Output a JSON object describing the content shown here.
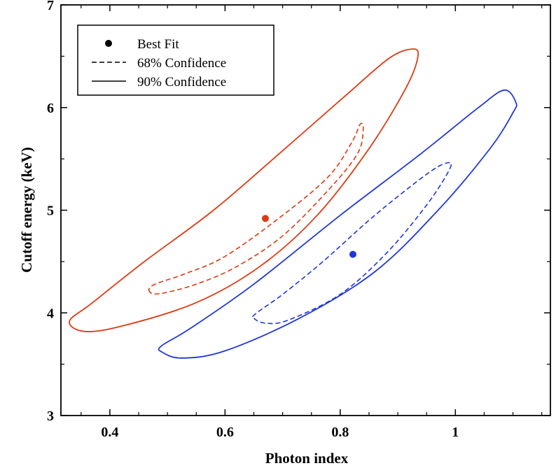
{
  "chart_data": {
    "type": "scatter",
    "title": "",
    "xlabel": "Photon index",
    "ylabel": "Cutoff energy (keV)",
    "xlim": [
      0.315,
      1.165
    ],
    "ylim": [
      3,
      7
    ],
    "xticks": [
      0.4,
      0.6,
      0.8,
      1.0
    ],
    "xtick_labels": [
      "0.4",
      "0.6",
      "0.8",
      "1"
    ],
    "yticks": [
      3,
      4,
      5,
      6,
      7
    ],
    "ytick_labels": [
      "3",
      "4",
      "5",
      "6",
      "7"
    ],
    "legend": {
      "position": "top-left",
      "entries": [
        {
          "label": "Best Fit",
          "style": "dot"
        },
        {
          "label": "68% Confidence",
          "style": "dashed"
        },
        {
          "label": "90% Confidence",
          "style": "solid"
        }
      ]
    },
    "series": [
      {
        "name": "red",
        "color": "#dd3a12",
        "best_fit": {
          "x": 0.67,
          "y": 4.92
        },
        "contour_68": [
          [
            0.47,
            4.2
          ],
          [
            0.475,
            4.27
          ],
          [
            0.53,
            4.38
          ],
          [
            0.6,
            4.55
          ],
          [
            0.7,
            4.95
          ],
          [
            0.78,
            5.33
          ],
          [
            0.82,
            5.66
          ],
          [
            0.835,
            5.84
          ],
          [
            0.84,
            5.78
          ],
          [
            0.83,
            5.55
          ],
          [
            0.78,
            5.2
          ],
          [
            0.7,
            4.75
          ],
          [
            0.62,
            4.45
          ],
          [
            0.55,
            4.28
          ],
          [
            0.49,
            4.19
          ]
        ],
        "contour_90": [
          [
            0.33,
            3.92
          ],
          [
            0.355,
            3.82
          ],
          [
            0.42,
            3.87
          ],
          [
            0.55,
            4.1
          ],
          [
            0.66,
            4.45
          ],
          [
            0.76,
            4.95
          ],
          [
            0.85,
            5.6
          ],
          [
            0.915,
            6.2
          ],
          [
            0.935,
            6.5
          ],
          [
            0.925,
            6.57
          ],
          [
            0.885,
            6.48
          ],
          [
            0.81,
            6.12
          ],
          [
            0.7,
            5.58
          ],
          [
            0.58,
            5.0
          ],
          [
            0.46,
            4.5
          ],
          [
            0.37,
            4.1
          ]
        ]
      },
      {
        "name": "blue",
        "color": "#1f36d9",
        "best_fit": {
          "x": 0.822,
          "y": 4.57
        },
        "contour_68": [
          [
            0.65,
            3.95
          ],
          [
            0.67,
            3.9
          ],
          [
            0.71,
            3.93
          ],
          [
            0.8,
            4.18
          ],
          [
            0.88,
            4.58
          ],
          [
            0.95,
            5.05
          ],
          [
            0.99,
            5.4
          ],
          [
            0.985,
            5.46
          ],
          [
            0.95,
            5.35
          ],
          [
            0.86,
            4.95
          ],
          [
            0.77,
            4.5
          ],
          [
            0.7,
            4.18
          ],
          [
            0.655,
            4.0
          ]
        ],
        "contour_90": [
          [
            0.49,
            3.62
          ],
          [
            0.525,
            3.56
          ],
          [
            0.6,
            3.63
          ],
          [
            0.73,
            3.95
          ],
          [
            0.86,
            4.4
          ],
          [
            0.97,
            5.0
          ],
          [
            1.06,
            5.6
          ],
          [
            1.1,
            5.95
          ],
          [
            1.105,
            6.05
          ],
          [
            1.085,
            6.17
          ],
          [
            1.04,
            6.0
          ],
          [
            0.94,
            5.55
          ],
          [
            0.8,
            4.95
          ],
          [
            0.65,
            4.28
          ],
          [
            0.54,
            3.85
          ],
          [
            0.49,
            3.68
          ]
        ]
      }
    ]
  }
}
